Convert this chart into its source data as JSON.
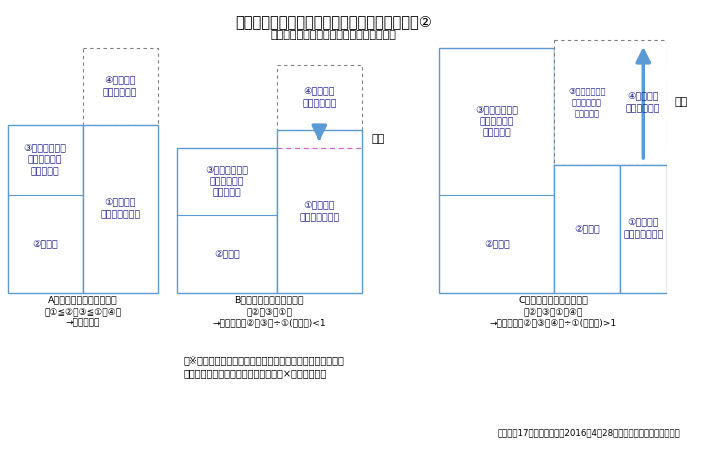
{
  "title": "図表２　リスク分担型企業年金の基本的仕組み②",
  "subtitle": "財政均衡（制度開始後の毎年度の決算時）",
  "footnote1": "（※）調整率：穏立金の穏み立て状況に応じて定まる率で、",
  "footnote2": "　　調整後の給付額＝調整前の給付額×調整率となる",
  "source": "出所：第17回企業年金部会2016年4月28日付資料等より大和総研作成",
  "blue": "#5b9bd5",
  "light_blue": "#9dc3e6",
  "dashed_gray": "#808080",
  "pink_dash": "#cc66cc",
  "text_blue": "#1f4e79",
  "bg": "#ffffff"
}
